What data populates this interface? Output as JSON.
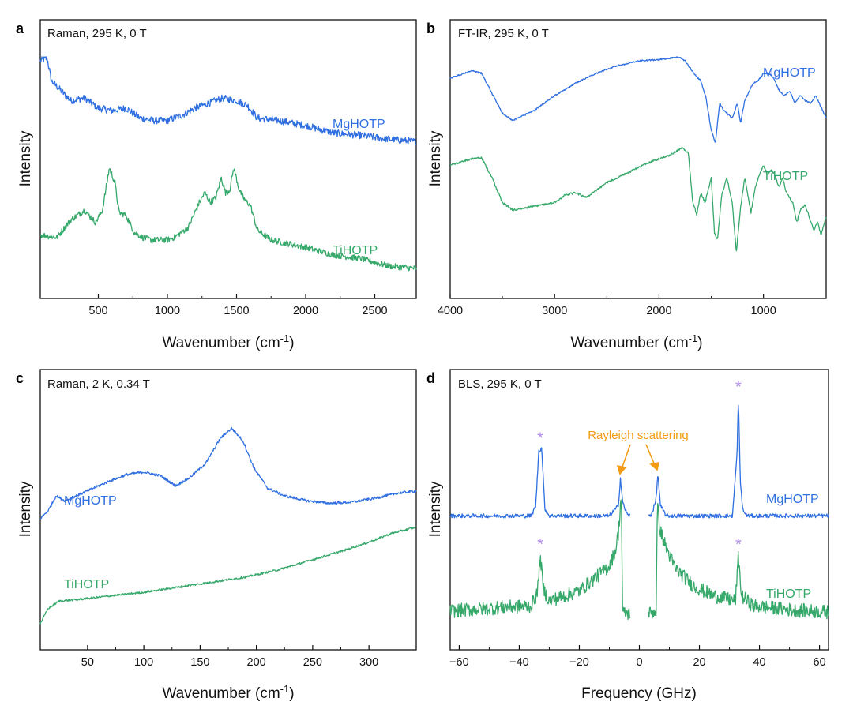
{
  "colors": {
    "mg": "#2F6FE0",
    "ti": "#35A86A",
    "annotation": "#F29B14",
    "star": "#B08AE8",
    "axis": "#111111"
  },
  "chart_data": [
    {
      "panel": "a",
      "type": "line",
      "condition": "Raman, 295 K, 0 T",
      "xlabel": "Wavenumber (cm",
      "xlabel_sup": "-1",
      "xlabel_end": ")",
      "ylabel": "Intensity",
      "xlim": [
        80,
        2800
      ],
      "ylim": [
        0,
        10
      ],
      "xticks": [
        500,
        1000,
        1500,
        2000,
        2500
      ],
      "series": [
        {
          "name": "MgHOTP",
          "label": "MgHOTP",
          "points": [
            [
              80,
              9.3
            ],
            [
              130,
              9.4
            ],
            [
              160,
              8.5
            ],
            [
              300,
              7.7
            ],
            [
              400,
              7.8
            ],
            [
              500,
              7.4
            ],
            [
              600,
              7.3
            ],
            [
              700,
              7.4
            ],
            [
              800,
              7.0
            ],
            [
              900,
              6.9
            ],
            [
              1000,
              6.9
            ],
            [
              1100,
              7.1
            ],
            [
              1200,
              7.4
            ],
            [
              1300,
              7.6
            ],
            [
              1400,
              7.8
            ],
            [
              1500,
              7.7
            ],
            [
              1580,
              7.5
            ],
            [
              1650,
              7.0
            ],
            [
              1800,
              6.9
            ],
            [
              2000,
              6.7
            ],
            [
              2200,
              6.4
            ],
            [
              2400,
              6.3
            ],
            [
              2600,
              6.15
            ],
            [
              2800,
              6.05
            ]
          ],
          "noise": 0.14
        },
        {
          "name": "TiHOTP",
          "label": "TiHOTP",
          "points": [
            [
              80,
              2.3
            ],
            [
              200,
              2.2
            ],
            [
              300,
              2.9
            ],
            [
              400,
              3.3
            ],
            [
              480,
              2.8
            ],
            [
              530,
              3.3
            ],
            [
              580,
              5.0
            ],
            [
              620,
              4.4
            ],
            [
              650,
              3.2
            ],
            [
              700,
              3.1
            ],
            [
              760,
              2.4
            ],
            [
              820,
              2.2
            ],
            [
              880,
              2.1
            ],
            [
              930,
              2.1
            ],
            [
              1000,
              2.1
            ],
            [
              1050,
              2.2
            ],
            [
              1150,
              2.6
            ],
            [
              1230,
              3.6
            ],
            [
              1270,
              4.0
            ],
            [
              1310,
              3.6
            ],
            [
              1350,
              3.8
            ],
            [
              1390,
              4.6
            ],
            [
              1420,
              4.0
            ],
            [
              1450,
              4.1
            ],
            [
              1480,
              5.0
            ],
            [
              1520,
              4.1
            ],
            [
              1560,
              3.7
            ],
            [
              1600,
              3.5
            ],
            [
              1650,
              2.5
            ],
            [
              1750,
              2.1
            ],
            [
              2000,
              1.8
            ],
            [
              2200,
              1.5
            ],
            [
              2400,
              1.35
            ],
            [
              2600,
              1.05
            ],
            [
              2800,
              0.95
            ]
          ],
          "noise": 0.12
        }
      ]
    },
    {
      "panel": "b",
      "type": "line",
      "condition": "FT-IR, 295 K, 0 T",
      "xlabel": "Wavenumber (cm",
      "xlabel_sup": "-1",
      "xlabel_end": ")",
      "ylabel": "Intensity",
      "xlim": [
        4000,
        400
      ],
      "ylim": [
        0,
        10
      ],
      "xticks": [
        4000,
        3000,
        2000,
        1000
      ],
      "series": [
        {
          "name": "MgHOTP",
          "label": "MgHOTP",
          "points": [
            [
              4000,
              8.6
            ],
            [
              3800,
              8.9
            ],
            [
              3700,
              8.8
            ],
            [
              3600,
              8.0
            ],
            [
              3500,
              7.2
            ],
            [
              3400,
              6.9
            ],
            [
              3200,
              7.3
            ],
            [
              3000,
              7.9
            ],
            [
              2800,
              8.4
            ],
            [
              2600,
              8.8
            ],
            [
              2400,
              9.1
            ],
            [
              2200,
              9.3
            ],
            [
              2000,
              9.35
            ],
            [
              1800,
              9.45
            ],
            [
              1750,
              9.3
            ],
            [
              1650,
              8.7
            ],
            [
              1600,
              8.5
            ],
            [
              1550,
              7.8
            ],
            [
              1500,
              6.5
            ],
            [
              1460,
              6.0
            ],
            [
              1420,
              7.6
            ],
            [
              1380,
              7.3
            ],
            [
              1300,
              7.0
            ],
            [
              1250,
              7.6
            ],
            [
              1220,
              6.8
            ],
            [
              1180,
              7.7
            ],
            [
              1100,
              8.4
            ],
            [
              1050,
              8.5
            ],
            [
              1000,
              8.8
            ],
            [
              950,
              8.8
            ],
            [
              900,
              8.6
            ],
            [
              850,
              8.1
            ],
            [
              800,
              7.9
            ],
            [
              750,
              8.1
            ],
            [
              700,
              7.6
            ],
            [
              650,
              7.9
            ],
            [
              600,
              7.7
            ],
            [
              550,
              7.6
            ],
            [
              500,
              7.9
            ],
            [
              400,
              7.0
            ]
          ],
          "noise": 0.03
        },
        {
          "name": "TiHOTP",
          "label": "TiHOTP",
          "points": [
            [
              4000,
              5.1
            ],
            [
              3800,
              5.35
            ],
            [
              3700,
              5.4
            ],
            [
              3600,
              4.6
            ],
            [
              3500,
              3.6
            ],
            [
              3400,
              3.3
            ],
            [
              3200,
              3.45
            ],
            [
              3000,
              3.6
            ],
            [
              2900,
              3.9
            ],
            [
              2800,
              4.0
            ],
            [
              2700,
              3.8
            ],
            [
              2500,
              4.4
            ],
            [
              2300,
              4.8
            ],
            [
              2100,
              5.2
            ],
            [
              1900,
              5.5
            ],
            [
              1780,
              5.8
            ],
            [
              1720,
              5.6
            ],
            [
              1680,
              3.7
            ],
            [
              1640,
              3.1
            ],
            [
              1600,
              4.0
            ],
            [
              1560,
              3.6
            ],
            [
              1500,
              4.6
            ],
            [
              1470,
              2.4
            ],
            [
              1440,
              2.1
            ],
            [
              1400,
              3.9
            ],
            [
              1350,
              4.6
            ],
            [
              1300,
              3.6
            ],
            [
              1260,
              1.6
            ],
            [
              1220,
              3.4
            ],
            [
              1180,
              4.6
            ],
            [
              1120,
              3.2
            ],
            [
              1080,
              4.2
            ],
            [
              1040,
              4.7
            ],
            [
              1000,
              5.1
            ],
            [
              960,
              4.7
            ],
            [
              930,
              4.9
            ],
            [
              900,
              4.8
            ],
            [
              850,
              4.2
            ],
            [
              820,
              4.6
            ],
            [
              780,
              4.0
            ],
            [
              720,
              3.6
            ],
            [
              680,
              2.8
            ],
            [
              650,
              3.3
            ],
            [
              600,
              3.5
            ],
            [
              560,
              3.0
            ],
            [
              520,
              2.5
            ],
            [
              480,
              2.8
            ],
            [
              450,
              2.3
            ],
            [
              400,
              3.0
            ]
          ],
          "noise": 0.04
        }
      ]
    },
    {
      "panel": "c",
      "type": "line",
      "condition": "Raman, 2 K, 0.34 T",
      "xlabel": "Wavenumber (cm",
      "xlabel_sup": "-1",
      "xlabel_end": ")",
      "ylabel": "Intensity",
      "xlim": [
        8,
        342
      ],
      "ylim": [
        0,
        10
      ],
      "xticks": [
        50,
        100,
        150,
        200,
        250,
        300
      ],
      "series": [
        {
          "name": "MgHOTP",
          "label": "MgHOTP",
          "points": [
            [
              8,
              5.0
            ],
            [
              15,
              5.3
            ],
            [
              22,
              5.9
            ],
            [
              30,
              5.7
            ],
            [
              40,
              5.9
            ],
            [
              55,
              6.2
            ],
            [
              70,
              6.5
            ],
            [
              85,
              6.75
            ],
            [
              100,
              6.85
            ],
            [
              115,
              6.7
            ],
            [
              128,
              6.3
            ],
            [
              140,
              6.6
            ],
            [
              155,
              7.2
            ],
            [
              168,
              8.2
            ],
            [
              178,
              8.6
            ],
            [
              188,
              8.1
            ],
            [
              198,
              7.0
            ],
            [
              210,
              6.2
            ],
            [
              225,
              5.9
            ],
            [
              245,
              5.7
            ],
            [
              265,
              5.6
            ],
            [
              285,
              5.65
            ],
            [
              305,
              5.8
            ],
            [
              325,
              6.0
            ],
            [
              342,
              6.1
            ]
          ],
          "noise": 0.05
        },
        {
          "name": "TiHOTP",
          "label": "TiHOTP",
          "points": [
            [
              8,
              0.8
            ],
            [
              15,
              1.4
            ],
            [
              25,
              1.7
            ],
            [
              40,
              1.75
            ],
            [
              60,
              1.85
            ],
            [
              80,
              1.95
            ],
            [
              100,
              2.05
            ],
            [
              130,
              2.25
            ],
            [
              160,
              2.45
            ],
            [
              190,
              2.65
            ],
            [
              220,
              2.95
            ],
            [
              250,
              3.35
            ],
            [
              280,
              3.75
            ],
            [
              300,
              4.05
            ],
            [
              320,
              4.4
            ],
            [
              342,
              4.65
            ]
          ],
          "noise": 0.04
        }
      ]
    },
    {
      "panel": "d",
      "type": "line",
      "condition": "BLS, 295 K, 0 T",
      "xlabel": "Frequency (GHz)",
      "ylabel": "Intensity",
      "xlim": [
        -63,
        63
      ],
      "ylim": [
        0,
        10
      ],
      "xticks": [
        -60,
        -40,
        -20,
        0,
        20,
        40,
        60
      ],
      "annotation": "Rayleigh scattering",
      "star_marker": "*",
      "star_positions": [
        -33,
        33,
        -33,
        33
      ],
      "series": [
        {
          "name": "MgHOTP",
          "label": "MgHOTP",
          "gap": [
            -3,
            3
          ],
          "points": [
            [
              -63,
              5.1
            ],
            [
              -36,
              5.1
            ],
            [
              -34.5,
              5.5
            ],
            [
              -33.5,
              7.7
            ],
            [
              -32.5,
              7.8
            ],
            [
              -31.5,
              5.4
            ],
            [
              -30,
              5.1
            ],
            [
              -10,
              5.1
            ],
            [
              -7,
              5.5
            ],
            [
              -6.3,
              6.6
            ],
            [
              -5.5,
              5.6
            ],
            [
              -4,
              5.15
            ],
            [
              -3,
              5.1
            ],
            [
              3,
              5.1
            ],
            [
              4,
              5.15
            ],
            [
              5.5,
              5.7
            ],
            [
              6.2,
              6.8
            ],
            [
              7,
              5.5
            ],
            [
              9,
              5.1
            ],
            [
              31,
              5.1
            ],
            [
              32.5,
              7.5
            ],
            [
              33,
              9.8
            ],
            [
              33.6,
              6.5
            ],
            [
              34.5,
              5.3
            ],
            [
              36,
              5.1
            ],
            [
              63,
              5.1
            ]
          ],
          "noise": 0.08
        },
        {
          "name": "TiHOTP",
          "label": "TiHOTP",
          "gap": [
            -3,
            3
          ],
          "points": [
            [
              -63,
              1.3
            ],
            [
              -45,
              1.45
            ],
            [
              -36,
              1.5
            ],
            [
              -34,
              2.0
            ],
            [
              -33,
              3.5
            ],
            [
              -32,
              2.2
            ],
            [
              -30,
              1.7
            ],
            [
              -20,
              2.1
            ],
            [
              -15,
              2.6
            ],
            [
              -10,
              3.1
            ],
            [
              -8,
              3.7
            ],
            [
              -7,
              4.4
            ],
            [
              -6,
              6.0
            ],
            [
              -5.6,
              1.2
            ],
            [
              -3,
              1.2
            ],
            [
              3,
              1.2
            ],
            [
              5.6,
              1.3
            ],
            [
              6,
              5.5
            ],
            [
              7,
              4.5
            ],
            [
              9,
              3.8
            ],
            [
              12,
              3.0
            ],
            [
              18,
              2.3
            ],
            [
              25,
              1.9
            ],
            [
              32,
              1.7
            ],
            [
              32.6,
              2.8
            ],
            [
              33,
              3.5
            ],
            [
              34,
              1.9
            ],
            [
              38,
              1.5
            ],
            [
              50,
              1.35
            ],
            [
              63,
              1.25
            ]
          ],
          "noise": 0.28
        }
      ]
    }
  ]
}
